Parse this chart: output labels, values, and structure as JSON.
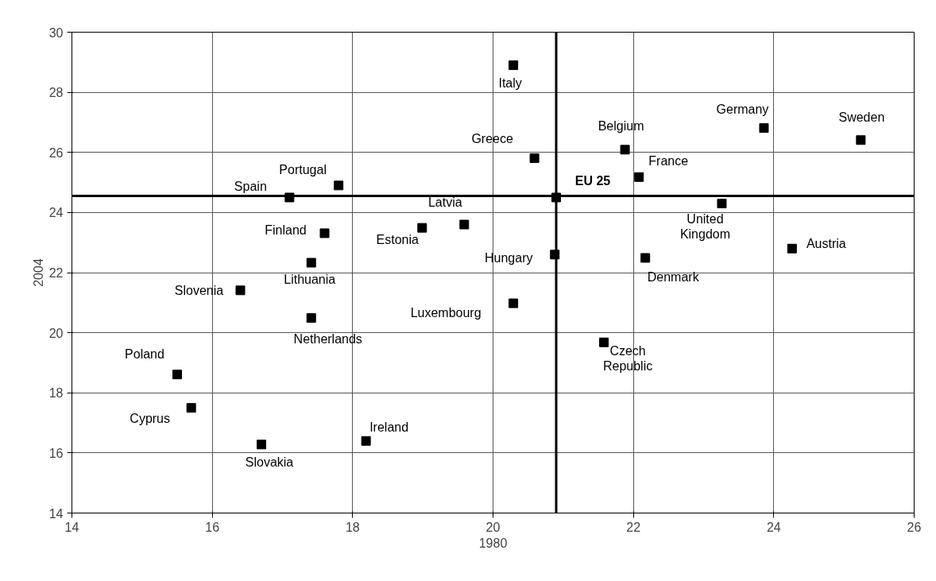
{
  "chart_data": {
    "type": "scatter",
    "xlabel": "1980",
    "ylabel": "2004",
    "marker": "square",
    "grid": true,
    "xlim": [
      14,
      26
    ],
    "ylim": [
      14,
      30
    ],
    "xticks": [
      14,
      16,
      18,
      20,
      22,
      24,
      26
    ],
    "yticks": [
      14,
      16,
      18,
      20,
      22,
      24,
      26,
      28,
      30
    ],
    "x": [
      15.5,
      15.7,
      16.7,
      16.4,
      17.41,
      17.41,
      17.6,
      17.1,
      17.8,
      18.19,
      18.99,
      19.59,
      20.29,
      20.88,
      20.59,
      20.29,
      20.9,
      21.88,
      22.08,
      21.58,
      22.17,
      23.26,
      23.86,
      25.24,
      24.26
    ],
    "series": [
      {
        "color": "#000000",
        "values": [
          18.61,
          17.5,
          16.28,
          21.41,
          20.49,
          22.33,
          23.31,
          24.5,
          24.9,
          16.4,
          23.49,
          23.6,
          20.98,
          22.6,
          25.81,
          28.9,
          24.5,
          26.09,
          25.18,
          19.68,
          22.49,
          24.3,
          26.81,
          26.41,
          22.8
        ]
      }
    ],
    "ref_lines": [
      {
        "axis": "x",
        "value": 20.9,
        "color": "#000000"
      },
      {
        "axis": "y",
        "value": 24.55,
        "color": "#000000"
      }
    ],
    "annotations": [
      {
        "text": "Poland",
        "x": 15.5,
        "y": 18.61
      },
      {
        "text": "Cyprus",
        "x": 15.7,
        "y": 17.5
      },
      {
        "text": "Slovakia",
        "x": 16.7,
        "y": 16.28
      },
      {
        "text": "Slovenia",
        "x": 16.4,
        "y": 21.41
      },
      {
        "text": "Netherlands",
        "x": 17.41,
        "y": 20.49
      },
      {
        "text": "Lithuania",
        "x": 17.41,
        "y": 22.33
      },
      {
        "text": "Finland",
        "x": 17.6,
        "y": 23.31
      },
      {
        "text": "Spain",
        "x": 17.1,
        "y": 24.5
      },
      {
        "text": "Portugal",
        "x": 17.8,
        "y": 24.9
      },
      {
        "text": "Ireland",
        "x": 18.19,
        "y": 16.4
      },
      {
        "text": "Estonia",
        "x": 18.99,
        "y": 23.49
      },
      {
        "text": "Latvia",
        "x": 19.59,
        "y": 23.6
      },
      {
        "text": "Luxembourg",
        "x": 20.29,
        "y": 20.98
      },
      {
        "text": "Hungary",
        "x": 20.88,
        "y": 22.6
      },
      {
        "text": "Greece",
        "x": 20.59,
        "y": 25.81
      },
      {
        "text": "Italy",
        "x": 20.29,
        "y": 28.9
      },
      {
        "text": "EU 25",
        "x": 20.9,
        "y": 24.5
      },
      {
        "text": "Belgium",
        "x": 21.88,
        "y": 26.09
      },
      {
        "text": "France",
        "x": 22.08,
        "y": 25.18
      },
      {
        "text": "Czech Republic",
        "x": 21.58,
        "y": 19.68
      },
      {
        "text": "Denmark",
        "x": 22.17,
        "y": 22.49
      },
      {
        "text": "United Kingdom",
        "x": 23.26,
        "y": 24.3
      },
      {
        "text": "Germany",
        "x": 23.86,
        "y": 26.81
      },
      {
        "text": "Sweden",
        "x": 25.24,
        "y": 26.41
      },
      {
        "text": "Austria",
        "x": 24.26,
        "y": 22.8
      }
    ]
  }
}
